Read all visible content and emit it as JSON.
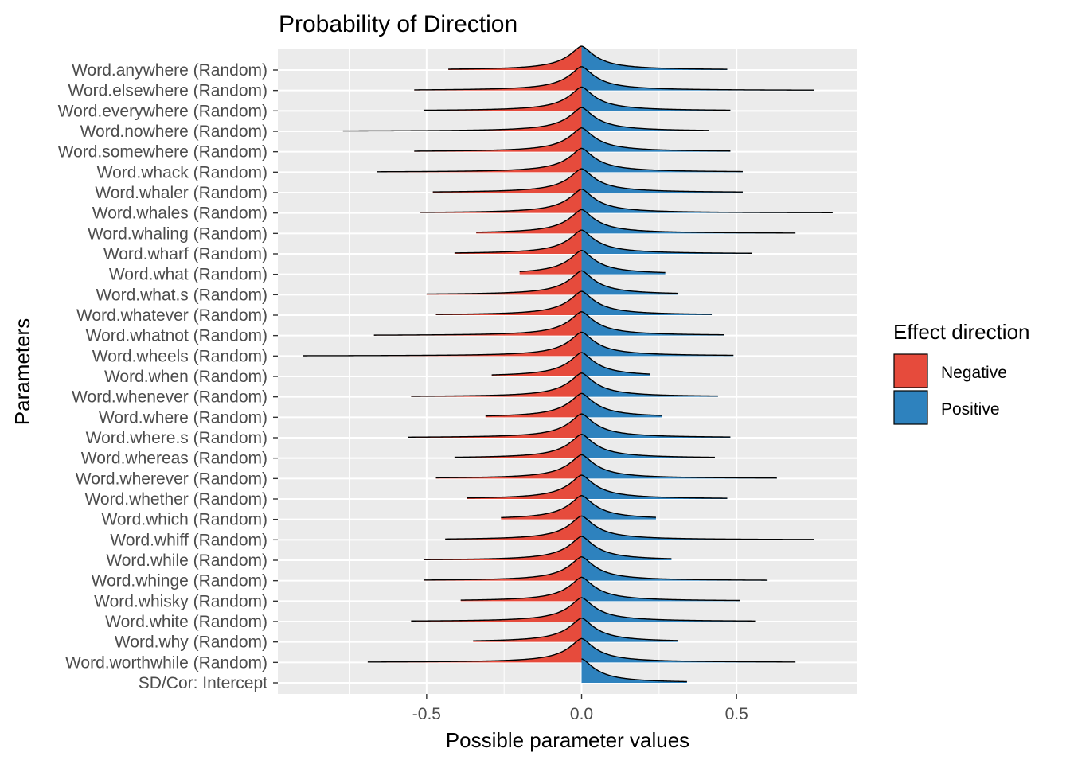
{
  "chart_data": {
    "type": "area",
    "title": "Probability of Direction",
    "xlabel": "Possible parameter values",
    "ylabel": "Parameters",
    "xlim": [
      -0.98,
      0.89
    ],
    "x_ticks": [
      -0.5,
      0.0,
      0.5
    ],
    "x_tick_labels": [
      "-0.5",
      "0.0",
      "0.5"
    ],
    "grid": true,
    "legend": {
      "title": "Effect direction",
      "placement": "right",
      "entries": [
        {
          "label": "Negative",
          "color": "#E64B3C"
        },
        {
          "label": "Positive",
          "color": "#2E82BE"
        }
      ]
    },
    "parameters": [
      {
        "name": "Word.anywhere (Random)",
        "min": -0.43,
        "max": 0.47
      },
      {
        "name": "Word.elsewhere (Random)",
        "min": -0.54,
        "max": 0.75
      },
      {
        "name": "Word.everywhere (Random)",
        "min": -0.51,
        "max": 0.48
      },
      {
        "name": "Word.nowhere (Random)",
        "min": -0.77,
        "max": 0.41
      },
      {
        "name": "Word.somewhere (Random)",
        "min": -0.54,
        "max": 0.48
      },
      {
        "name": "Word.whack (Random)",
        "min": -0.66,
        "max": 0.52
      },
      {
        "name": "Word.whaler (Random)",
        "min": -0.48,
        "max": 0.52
      },
      {
        "name": "Word.whales (Random)",
        "min": -0.52,
        "max": 0.81
      },
      {
        "name": "Word.whaling (Random)",
        "min": -0.34,
        "max": 0.69
      },
      {
        "name": "Word.wharf (Random)",
        "min": -0.41,
        "max": 0.55
      },
      {
        "name": "Word.what (Random)",
        "min": -0.2,
        "max": 0.27
      },
      {
        "name": "Word.what.s (Random)",
        "min": -0.5,
        "max": 0.31
      },
      {
        "name": "Word.whatever (Random)",
        "min": -0.47,
        "max": 0.42
      },
      {
        "name": "Word.whatnot (Random)",
        "min": -0.67,
        "max": 0.46
      },
      {
        "name": "Word.wheels (Random)",
        "min": -0.9,
        "max": 0.49
      },
      {
        "name": "Word.when (Random)",
        "min": -0.29,
        "max": 0.22
      },
      {
        "name": "Word.whenever (Random)",
        "min": -0.55,
        "max": 0.44
      },
      {
        "name": "Word.where (Random)",
        "min": -0.31,
        "max": 0.26
      },
      {
        "name": "Word.where.s (Random)",
        "min": -0.56,
        "max": 0.48
      },
      {
        "name": "Word.whereas (Random)",
        "min": -0.41,
        "max": 0.43
      },
      {
        "name": "Word.wherever (Random)",
        "min": -0.47,
        "max": 0.63
      },
      {
        "name": "Word.whether (Random)",
        "min": -0.37,
        "max": 0.47
      },
      {
        "name": "Word.which (Random)",
        "min": -0.26,
        "max": 0.24
      },
      {
        "name": "Word.whiff (Random)",
        "min": -0.44,
        "max": 0.75
      },
      {
        "name": "Word.while (Random)",
        "min": -0.51,
        "max": 0.29
      },
      {
        "name": "Word.whinge (Random)",
        "min": -0.51,
        "max": 0.6
      },
      {
        "name": "Word.whisky (Random)",
        "min": -0.39,
        "max": 0.51
      },
      {
        "name": "Word.white (Random)",
        "min": -0.55,
        "max": 0.56
      },
      {
        "name": "Word.why (Random)",
        "min": -0.35,
        "max": 0.31
      },
      {
        "name": "Word.worthwhile (Random)",
        "min": -0.69,
        "max": 0.69
      },
      {
        "name": "SD/Cor:  Intercept",
        "min": 0.0,
        "max": 0.34
      }
    ]
  }
}
